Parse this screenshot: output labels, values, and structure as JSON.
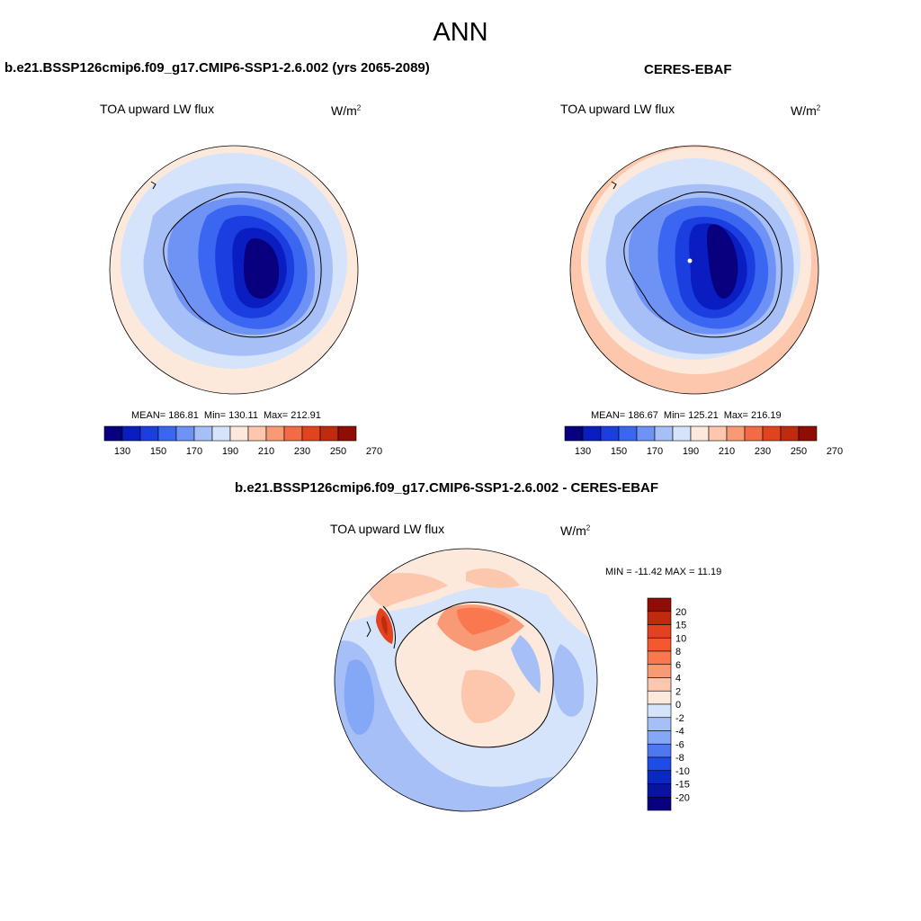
{
  "title": "ANN",
  "panels": [
    {
      "title": "b.e21.BSSP126cmip6.f09_g17.CMIP6-SSP1-2.6.002 (yrs 2065-2089)",
      "variable": "TOA upward LW flux",
      "units_base": "W/m",
      "units_exp": "2",
      "stats": {
        "mean": "MEAN= 186.81",
        "min": "Min= 130.11",
        "max": "Max= 212.91"
      }
    },
    {
      "title": "CERES-EBAF",
      "variable": "TOA upward LW flux",
      "units_base": "W/m",
      "units_exp": "2",
      "stats": {
        "mean": "MEAN= 186.67",
        "min": "Min= 125.21",
        "max": "Max= 216.19"
      }
    },
    {
      "title": "b.e21.BSSP126cmip6.f09_g17.CMIP6-SSP1-2.6.002 - CERES-EBAF",
      "variable": "TOA upward LW flux",
      "units_base": "W/m",
      "units_exp": "2",
      "stats": {
        "minmax": "MIN = -11.42 MAX =  11.19"
      }
    }
  ],
  "colorbars": {
    "field": {
      "labels": [
        "130",
        "150",
        "170",
        "190",
        "210",
        "230",
        "250",
        "270"
      ],
      "colors": [
        "#08007e",
        "#0a1dc0",
        "#1a3ee0",
        "#3a66f2",
        "#6e93f4",
        "#a6bff6",
        "#d6e4fb",
        "#fde9dc",
        "#fcc7ac",
        "#f99a76",
        "#f46a45",
        "#e2421e",
        "#c02a0f",
        "#8e0d04"
      ]
    },
    "diff": {
      "labels": [
        "20",
        "15",
        "10",
        "8",
        "6",
        "4",
        "2",
        "0",
        "-2",
        "-4",
        "-6",
        "-8",
        "-10",
        "-15",
        "-20"
      ],
      "colors": [
        "#8e0d04",
        "#c02a0f",
        "#e2421e",
        "#f4582e",
        "#f97850",
        "#f99a76",
        "#fcc7ac",
        "#fde9dc",
        "#d6e4fb",
        "#a6bff6",
        "#84a8f5",
        "#4f78f0",
        "#1f4ce6",
        "#0a28c4",
        "#08139e",
        "#08007e"
      ]
    }
  }
}
